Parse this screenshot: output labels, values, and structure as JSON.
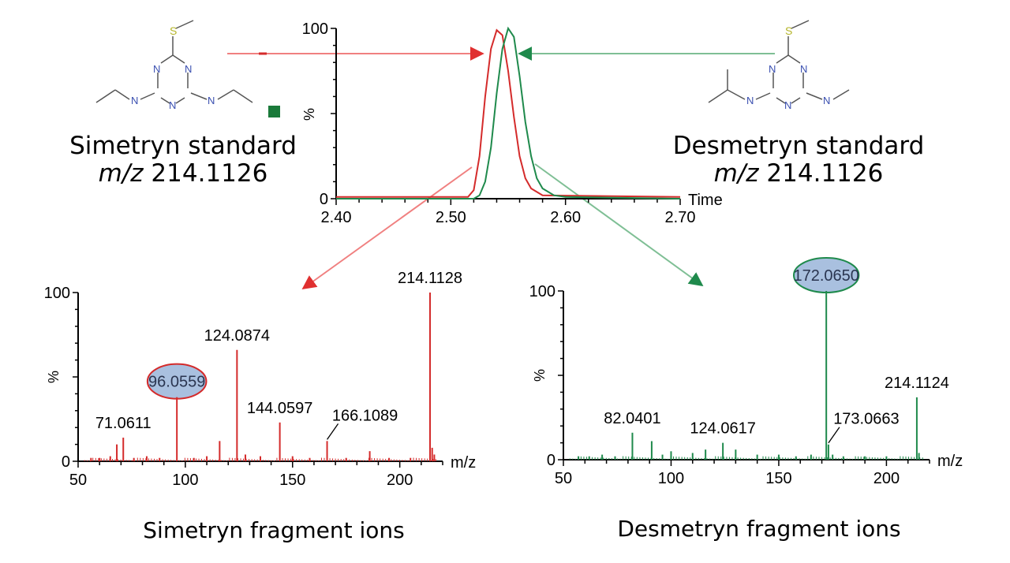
{
  "colors": {
    "simetryn": "#d42b2b",
    "desmetryn": "#1f8a4c",
    "simetryn_arrow": "#f08080",
    "desmetryn_arrow": "#7fbf95",
    "axis": "#000000",
    "highlight_fill": "#a9c0df",
    "bond": "#555555",
    "nitrogen": "#3a4fb0",
    "sulfur": "#b5b52a",
    "marker": "#1a7a3a"
  },
  "labels": {
    "simetryn_title": "Simetryn standard",
    "simetryn_mz_label": "m/z",
    "simetryn_mz_value": " 214.1126",
    "desmetryn_title": "Desmetryn standard",
    "desmetryn_mz_label": "m/z",
    "desmetryn_mz_value": " 214.1126",
    "simetryn_caption": "Simetryn fragment ions",
    "desmetryn_caption": "Desmetryn fragment ions",
    "atom_n": "N",
    "atom_s": "S"
  },
  "chart_data": [
    {
      "id": "chromatogram",
      "type": "line",
      "xlabel": "Time",
      "ylabel": "%",
      "xlim": [
        2.4,
        2.7
      ],
      "ylim": [
        0,
        100
      ],
      "xticks": [
        "2.40",
        "2.50",
        "2.60",
        "2.70"
      ],
      "yticks": [
        "0",
        "100"
      ],
      "series": [
        {
          "color_key": "simetryn",
          "x": [
            2.4,
            2.5,
            2.515,
            2.52,
            2.525,
            2.53,
            2.535,
            2.54,
            2.545,
            2.55,
            2.555,
            2.56,
            2.565,
            2.57,
            2.58,
            2.7
          ],
          "y": [
            1,
            1,
            1,
            5,
            25,
            60,
            88,
            99,
            96,
            75,
            48,
            25,
            12,
            6,
            2,
            1
          ]
        },
        {
          "color_key": "desmetryn",
          "x": [
            2.4,
            2.5,
            2.52,
            2.525,
            2.53,
            2.535,
            2.54,
            2.545,
            2.55,
            2.555,
            2.56,
            2.565,
            2.57,
            2.575,
            2.58,
            2.59,
            2.6,
            2.7
          ],
          "y": [
            0,
            0,
            0,
            2,
            10,
            30,
            62,
            88,
            100,
            95,
            72,
            45,
            25,
            12,
            6,
            2,
            1,
            0
          ]
        }
      ]
    },
    {
      "id": "simetryn_spectrum",
      "type": "bar",
      "xlabel": "m/z",
      "ylabel": "%",
      "xlim": [
        50,
        220
      ],
      "ylim": [
        0,
        100
      ],
      "xticks": [
        "50",
        "100",
        "150",
        "200"
      ],
      "yticks": [
        "0",
        "100"
      ],
      "color_key": "simetryn",
      "peaks": [
        {
          "mz": 56,
          "i": 2
        },
        {
          "mz": 60,
          "i": 2
        },
        {
          "mz": 65,
          "i": 3
        },
        {
          "mz": 68.05,
          "i": 10
        },
        {
          "mz": 71.06,
          "i": 14
        },
        {
          "mz": 76,
          "i": 2
        },
        {
          "mz": 82,
          "i": 3
        },
        {
          "mz": 88,
          "i": 2
        },
        {
          "mz": 96.06,
          "i": 38
        },
        {
          "mz": 104,
          "i": 2
        },
        {
          "mz": 110,
          "i": 3
        },
        {
          "mz": 116,
          "i": 12
        },
        {
          "mz": 124.09,
          "i": 66
        },
        {
          "mz": 128,
          "i": 4
        },
        {
          "mz": 135,
          "i": 3
        },
        {
          "mz": 144.06,
          "i": 23
        },
        {
          "mz": 150,
          "i": 3
        },
        {
          "mz": 158,
          "i": 2
        },
        {
          "mz": 166.11,
          "i": 12
        },
        {
          "mz": 175,
          "i": 2
        },
        {
          "mz": 186,
          "i": 6
        },
        {
          "mz": 195,
          "i": 2
        },
        {
          "mz": 205,
          "i": 2
        },
        {
          "mz": 214.11,
          "i": 100
        },
        {
          "mz": 215.1,
          "i": 8
        },
        {
          "mz": 216.1,
          "i": 4
        }
      ],
      "labels": [
        {
          "text": "71.0611",
          "mz": 71.06,
          "i": 14,
          "highlight": false,
          "leader": false
        },
        {
          "text": "96.0559",
          "mz": 96.06,
          "i": 38,
          "highlight": true,
          "leader": false
        },
        {
          "text": "124.0874",
          "mz": 124.09,
          "i": 66,
          "highlight": false,
          "leader": false
        },
        {
          "text": "144.0597",
          "mz": 144.06,
          "i": 23,
          "highlight": false,
          "leader": false
        },
        {
          "text": "166.1089",
          "mz": 166.11,
          "i": 12,
          "highlight": false,
          "leader": true
        },
        {
          "text": "214.1128",
          "mz": 214.11,
          "i": 100,
          "highlight": false,
          "leader": false
        }
      ]
    },
    {
      "id": "desmetryn_spectrum",
      "type": "bar",
      "xlabel": "m/z",
      "ylabel": "%",
      "xlim": [
        50,
        220
      ],
      "ylim": [
        0,
        100
      ],
      "xticks": [
        "50",
        "100",
        "150",
        "200"
      ],
      "yticks": [
        "0",
        "100"
      ],
      "color_key": "desmetryn",
      "peaks": [
        {
          "mz": 57,
          "i": 2
        },
        {
          "mz": 62,
          "i": 2
        },
        {
          "mz": 68,
          "i": 3
        },
        {
          "mz": 74,
          "i": 2
        },
        {
          "mz": 82.04,
          "i": 16
        },
        {
          "mz": 91,
          "i": 11
        },
        {
          "mz": 96,
          "i": 3
        },
        {
          "mz": 100,
          "i": 5
        },
        {
          "mz": 110,
          "i": 4
        },
        {
          "mz": 116,
          "i": 6
        },
        {
          "mz": 124.06,
          "i": 10
        },
        {
          "mz": 130,
          "i": 6
        },
        {
          "mz": 140,
          "i": 3
        },
        {
          "mz": 150,
          "i": 3
        },
        {
          "mz": 158,
          "i": 2
        },
        {
          "mz": 165,
          "i": 3
        },
        {
          "mz": 172.07,
          "i": 100
        },
        {
          "mz": 173.07,
          "i": 9
        },
        {
          "mz": 175,
          "i": 3
        },
        {
          "mz": 180,
          "i": 2
        },
        {
          "mz": 190,
          "i": 2
        },
        {
          "mz": 200,
          "i": 2
        },
        {
          "mz": 214.11,
          "i": 37
        },
        {
          "mz": 215.1,
          "i": 4
        }
      ],
      "labels": [
        {
          "text": "82.0401",
          "mz": 82.04,
          "i": 16,
          "highlight": false,
          "leader": false
        },
        {
          "text": "124.0617",
          "mz": 124.06,
          "i": 10,
          "highlight": false,
          "leader": false
        },
        {
          "text": "172.0650",
          "mz": 172.07,
          "i": 100,
          "highlight": true,
          "leader": false
        },
        {
          "text": "173.0663",
          "mz": 173.07,
          "i": 9,
          "highlight": false,
          "leader": true
        },
        {
          "text": "214.1124",
          "mz": 214.11,
          "i": 37,
          "highlight": false,
          "leader": false
        }
      ]
    }
  ]
}
